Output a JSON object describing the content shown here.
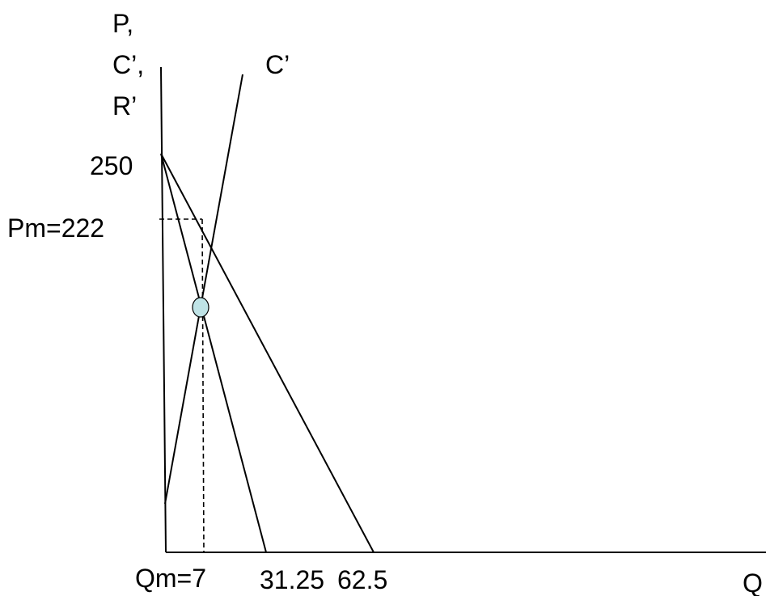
{
  "axes": {
    "y_label_lines": [
      "P,",
      "C’,",
      "R’"
    ],
    "x_label": "Q"
  },
  "curves": {
    "marginal_cost_label": "C’"
  },
  "ticks": {
    "y_intercept": "250",
    "monopoly_price": "Pm=222",
    "monopoly_quantity": "Qm=7",
    "mr_x_intercept": "31.25",
    "demand_x_intercept": "62.5"
  },
  "colors": {
    "lines": "#000000",
    "equilibrium_point": "#bfe3e6"
  }
}
